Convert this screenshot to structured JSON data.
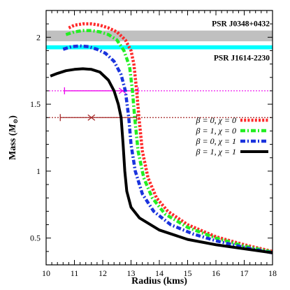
{
  "chart_data": {
    "type": "line",
    "xlabel": "Radius (kms)",
    "ylabel": "Mass (",
    "ylabel_symbol": "M",
    "ylabel_sub": "⊙",
    "ylabel_end": ")",
    "xlim": [
      10,
      18
    ],
    "ylim": [
      0.3,
      2.2
    ],
    "xticks": [
      10,
      11,
      12,
      13,
      14,
      15,
      16,
      17,
      18
    ],
    "yticks": [
      0.5,
      1,
      1.5,
      2
    ],
    "ytick_labels": [
      "0.5",
      "1",
      "1.5",
      "2"
    ],
    "xminor": 5,
    "yminor": 5,
    "bands": [
      {
        "name": "PSR J0348+0432",
        "ymin": 1.97,
        "ymax": 2.05,
        "color": "#c0c0c0"
      },
      {
        "name": "PSR J1614-2230",
        "ymin": 1.91,
        "ymax": 1.94,
        "color": "#00ffff"
      }
    ],
    "hlines": [
      {
        "y": 1.6,
        "color": "#ee00ee"
      },
      {
        "y": 1.4,
        "color": "#a52a2a"
      }
    ],
    "errorbars": [
      {
        "y": 1.6,
        "x_low": 10.65,
        "x_high": 13.25,
        "color": "#ee00ee",
        "marker_x": 12.7,
        "marker": "cross"
      },
      {
        "y": 1.4,
        "x_low": 10.5,
        "x_high": 13.2,
        "color": "#a52a2a",
        "marker_x": 11.6,
        "marker": "cross"
      }
    ],
    "series": [
      {
        "name": "β = 0, χ = 0",
        "color": "#ff2a2a",
        "style": "dotted",
        "points": [
          [
            10.8,
            2.07
          ],
          [
            11.0,
            2.09
          ],
          [
            11.3,
            2.1
          ],
          [
            11.6,
            2.1
          ],
          [
            11.9,
            2.09
          ],
          [
            12.2,
            2.07
          ],
          [
            12.5,
            2.04
          ],
          [
            12.8,
            1.98
          ],
          [
            13.0,
            1.9
          ],
          [
            13.1,
            1.8
          ],
          [
            13.2,
            1.6
          ],
          [
            13.28,
            1.4
          ],
          [
            13.4,
            1.15
          ],
          [
            13.6,
            0.95
          ],
          [
            13.9,
            0.8
          ],
          [
            14.3,
            0.7
          ],
          [
            15.0,
            0.6
          ],
          [
            16.0,
            0.51
          ],
          [
            17.0,
            0.45
          ],
          [
            18.0,
            0.4
          ]
        ]
      },
      {
        "name": "β = 1, χ = 0",
        "color": "#22ee22",
        "style": "dashdot",
        "points": [
          [
            10.7,
            2.02
          ],
          [
            11.0,
            2.04
          ],
          [
            11.3,
            2.05
          ],
          [
            11.6,
            2.05
          ],
          [
            11.9,
            2.04
          ],
          [
            12.2,
            2.02
          ],
          [
            12.5,
            1.98
          ],
          [
            12.75,
            1.9
          ],
          [
            12.95,
            1.78
          ],
          [
            13.05,
            1.6
          ],
          [
            13.13,
            1.4
          ],
          [
            13.25,
            1.15
          ],
          [
            13.45,
            0.95
          ],
          [
            13.75,
            0.8
          ],
          [
            14.2,
            0.68
          ],
          [
            15.0,
            0.58
          ],
          [
            16.0,
            0.5
          ],
          [
            17.0,
            0.44
          ],
          [
            18.0,
            0.395
          ]
        ]
      },
      {
        "name": "β = 0, χ = 1",
        "color": "#1a33dd",
        "style": "dashdot",
        "points": [
          [
            10.6,
            1.91
          ],
          [
            10.9,
            1.93
          ],
          [
            11.2,
            1.935
          ],
          [
            11.5,
            1.93
          ],
          [
            11.8,
            1.91
          ],
          [
            12.1,
            1.88
          ],
          [
            12.4,
            1.82
          ],
          [
            12.65,
            1.72
          ],
          [
            12.8,
            1.6
          ],
          [
            12.92,
            1.4
          ],
          [
            13.0,
            1.2
          ],
          [
            13.15,
            1.0
          ],
          [
            13.4,
            0.83
          ],
          [
            13.8,
            0.7
          ],
          [
            14.4,
            0.6
          ],
          [
            15.2,
            0.53
          ],
          [
            16.0,
            0.48
          ],
          [
            17.0,
            0.43
          ],
          [
            18.0,
            0.39
          ]
        ]
      },
      {
        "name": "β = 1, χ = 1",
        "color": "#000000",
        "style": "solid",
        "points": [
          [
            10.15,
            1.71
          ],
          [
            10.4,
            1.73
          ],
          [
            10.7,
            1.75
          ],
          [
            11.0,
            1.76
          ],
          [
            11.3,
            1.765
          ],
          [
            11.6,
            1.76
          ],
          [
            11.9,
            1.74
          ],
          [
            12.2,
            1.68
          ],
          [
            12.4,
            1.6
          ],
          [
            12.55,
            1.5
          ],
          [
            12.65,
            1.4
          ],
          [
            12.72,
            1.2
          ],
          [
            12.78,
            1.0
          ],
          [
            12.85,
            0.85
          ],
          [
            13.0,
            0.73
          ],
          [
            13.3,
            0.65
          ],
          [
            14.0,
            0.56
          ],
          [
            15.0,
            0.49
          ],
          [
            16.0,
            0.45
          ],
          [
            17.0,
            0.42
          ],
          [
            18.0,
            0.39
          ]
        ]
      }
    ],
    "legend": {
      "position": "center-right",
      "labels": [
        "β = 0, χ = 0",
        "β = 1, χ = 0",
        "β = 0, χ = 1",
        "β = 1, χ = 1"
      ]
    },
    "grid": false
  }
}
